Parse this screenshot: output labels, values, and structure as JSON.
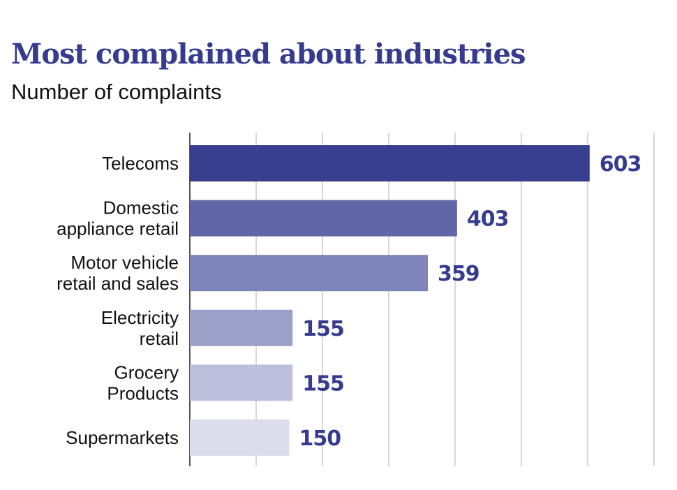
{
  "chart_data": {
    "type": "bar",
    "orientation": "horizontal",
    "title": "Most complained about industries",
    "subtitle": "Number of complaints",
    "categories": [
      [
        "Telecoms"
      ],
      [
        "Domestic",
        "appliance retail"
      ],
      [
        "Motor vehicle",
        "retail and sales"
      ],
      [
        "Electricity",
        "retail"
      ],
      [
        "Grocery",
        "Products"
      ],
      [
        "Supermarkets"
      ]
    ],
    "values": [
      603,
      403,
      359,
      155,
      155,
      150
    ],
    "xlim": [
      0,
      700
    ],
    "grid": true,
    "bar_colors": [
      "#373f8e",
      "#6266a6",
      "#7f84ba",
      "#9c9fc7",
      "#bcbfdc",
      "#dcddec"
    ],
    "label_color": "#363b8f"
  }
}
